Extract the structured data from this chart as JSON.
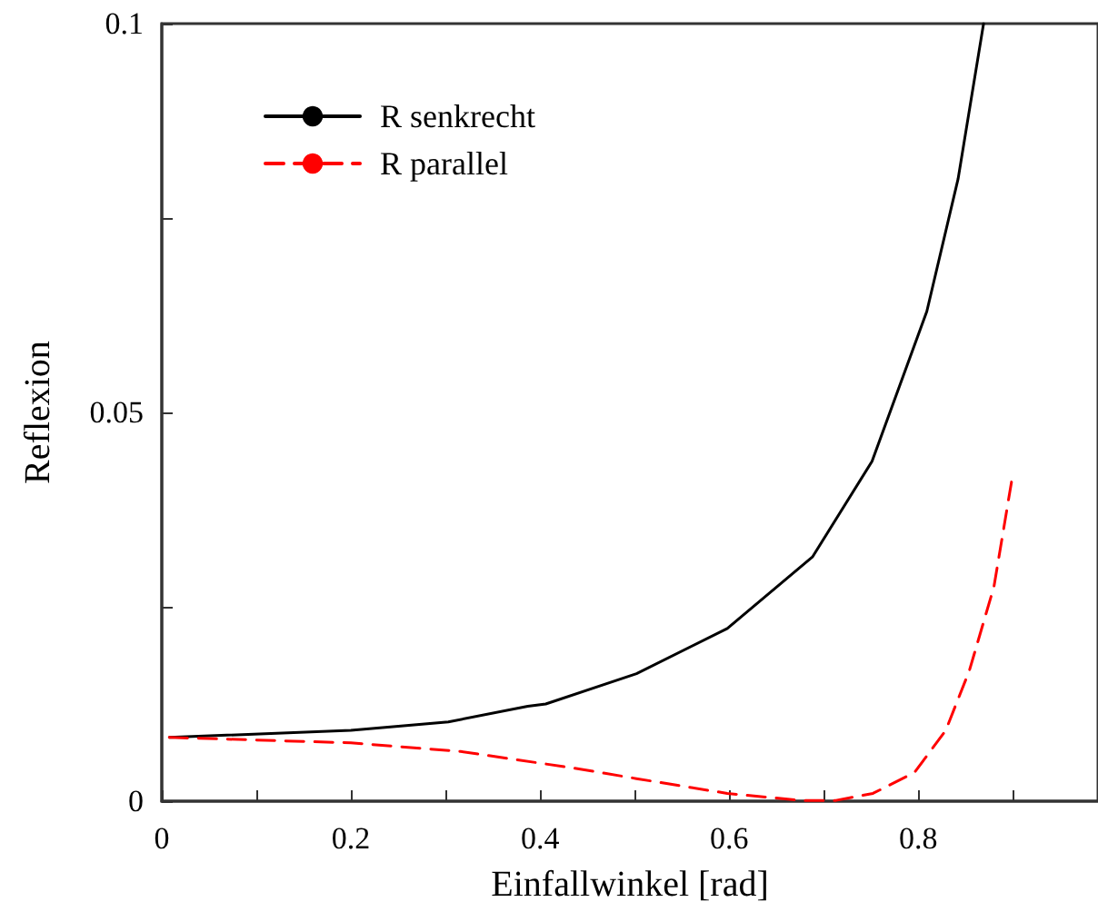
{
  "chart_data": {
    "type": "line",
    "xlabel": "Einfallwinkel [rad]",
    "ylabel": "Reflexion",
    "xlim": [
      0,
      0.99
    ],
    "ylim": [
      0,
      0.1
    ],
    "xticks": [
      0,
      {
        "value": 0.1,
        "label": null
      },
      0.2,
      {
        "value": 0.3,
        "label": null
      },
      0.4,
      {
        "value": 0.5,
        "label": null
      },
      0.6,
      {
        "value": 0.7,
        "label": null
      },
      0.8,
      {
        "value": 0.9,
        "label": null
      }
    ],
    "yticks": [
      0,
      {
        "value": 0.025,
        "label": null
      },
      0.05,
      {
        "value": 0.075,
        "label": null
      },
      0.1
    ],
    "legend": "top left",
    "marker": "none",
    "grid": false,
    "series": [
      {
        "name": "R senkrecht",
        "color": "#000000",
        "line_style": "solid",
        "x": [
          0.008,
          0.2,
          0.303,
          0.387,
          0.406,
          0.502,
          0.598,
          0.688,
          0.751,
          0.809,
          0.842,
          0.869
        ],
        "values": [
          0.0082,
          0.0091,
          0.0102,
          0.0122,
          0.0125,
          0.0164,
          0.0222,
          0.0314,
          0.0437,
          0.063,
          0.08,
          0.1
        ]
      },
      {
        "name": "R parallel",
        "color": "#ff0000",
        "line_style": "dashed",
        "x": [
          0.008,
          0.2,
          0.316,
          0.444,
          0.502,
          0.598,
          0.675,
          0.713,
          0.752,
          0.796,
          0.829,
          0.854,
          0.88,
          0.899
        ],
        "values": [
          0.0082,
          0.0075,
          0.0064,
          0.0041,
          0.0029,
          0.001,
          0.0001,
          0.0001,
          0.001,
          0.0037,
          0.0091,
          0.0168,
          0.0276,
          0.0414
        ]
      }
    ]
  }
}
